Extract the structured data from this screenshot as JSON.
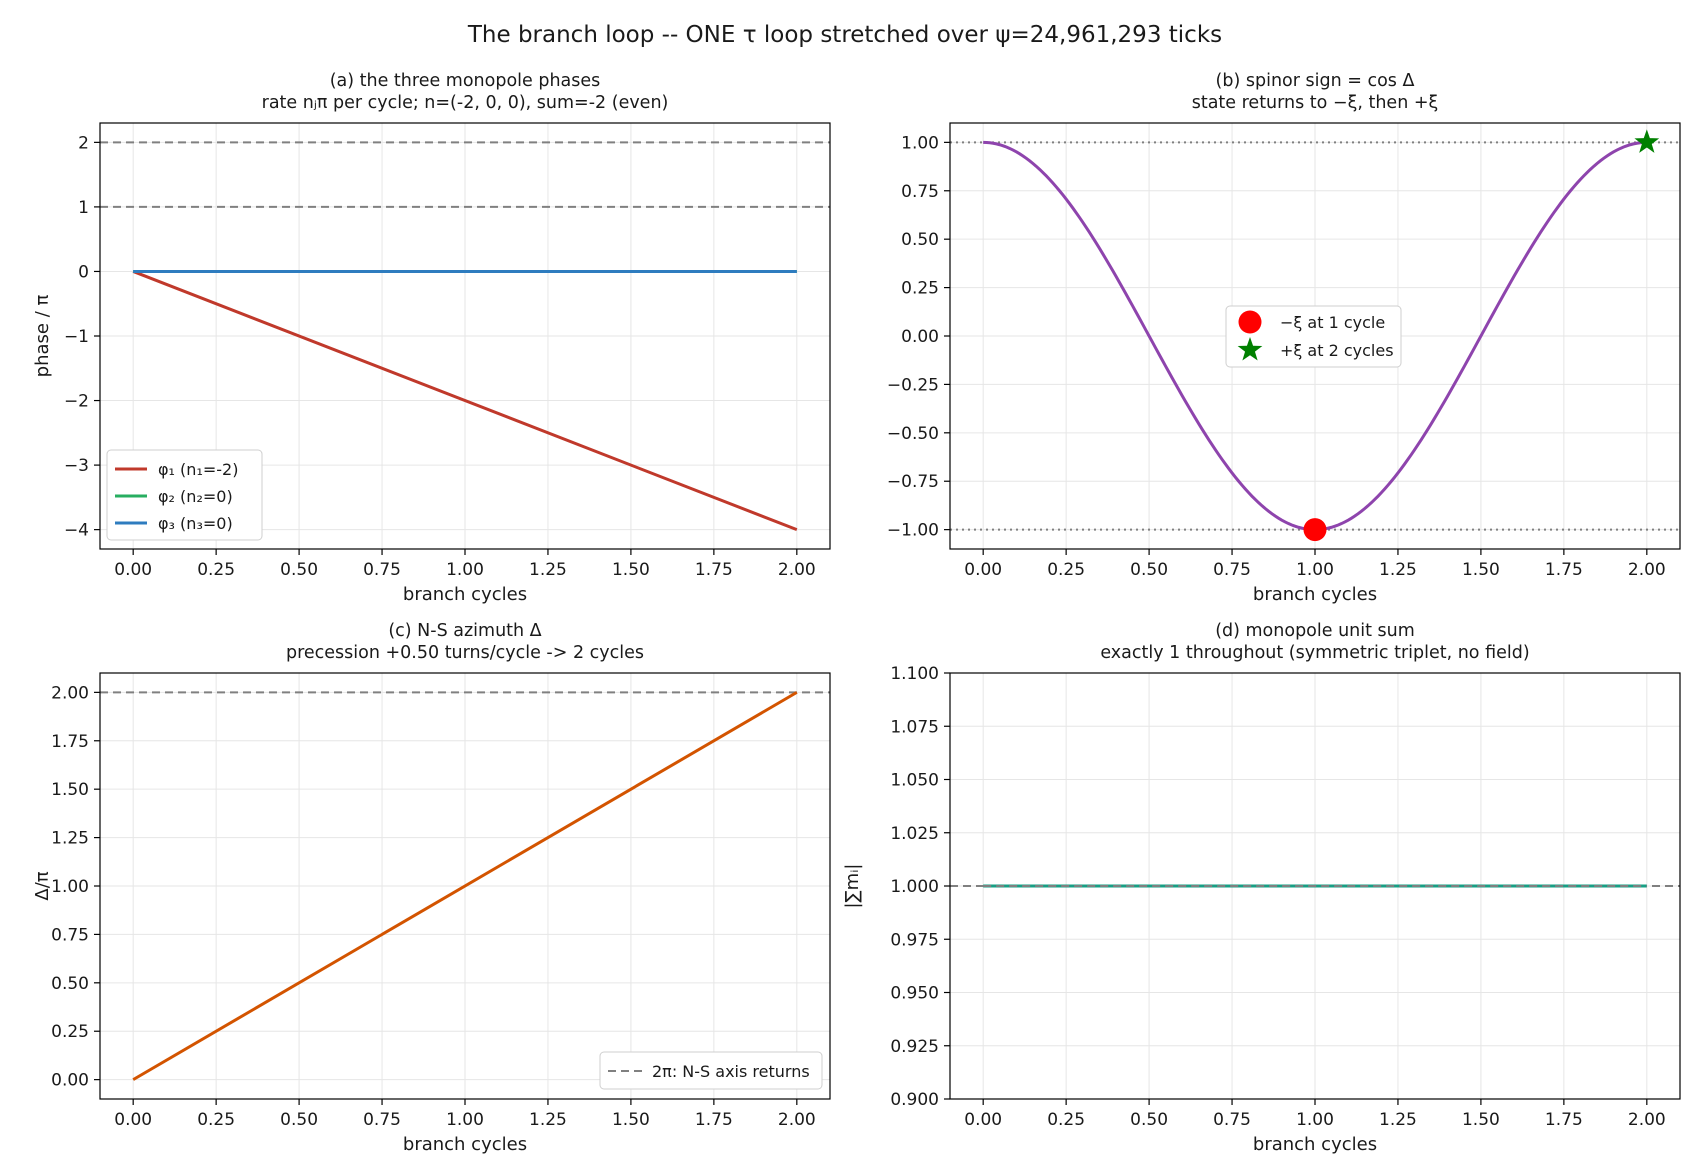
{
  "figure": {
    "title": "The branch loop -- ONE τ loop stretched over ψ=24,961,293 ticks"
  },
  "colors": {
    "phi1": "#c0392b",
    "phi2": "#27ae60",
    "phi3": "#2e7cbf",
    "spinor": "#8e44ad",
    "azimuth": "#d35400",
    "unitsum": "#16a085",
    "reference": "#808080",
    "marker_minus": "#ff0000",
    "marker_plus": "#008000"
  },
  "chart_data": [
    {
      "id": "a",
      "type": "line",
      "title_line1": "(a) the three monopole phases",
      "title_line2": "rate nⱼπ per cycle; n=(-2, 0, 0), sum=-2 (even)",
      "xlabel": "branch cycles",
      "ylabel": "phase / π",
      "xlim": [
        -0.1,
        2.1
      ],
      "ylim": [
        -4.3,
        2.3
      ],
      "xticks": [
        0,
        0.25,
        0.5,
        0.75,
        1.0,
        1.25,
        1.5,
        1.75,
        2.0
      ],
      "xtick_labels": [
        "0.00",
        "0.25",
        "0.50",
        "0.75",
        "1.00",
        "1.25",
        "1.50",
        "1.75",
        "2.00"
      ],
      "yticks": [
        -4,
        -3,
        -2,
        -1,
        0,
        1,
        2
      ],
      "ytick_labels": [
        "−4",
        "−3",
        "−2",
        "−1",
        "0",
        "1",
        "2"
      ],
      "grid": true,
      "hlines": [
        1,
        2
      ],
      "series": [
        {
          "name": "φ₁  (n₁=-2)",
          "color_key": "phi1",
          "x": [
            0,
            2
          ],
          "y": [
            0,
            -4
          ]
        },
        {
          "name": "φ₂  (n₂=0)",
          "color_key": "phi2",
          "x": [
            0,
            2
          ],
          "y": [
            0,
            0
          ]
        },
        {
          "name": "φ₃  (n₃=0)",
          "color_key": "phi3",
          "x": [
            0,
            2
          ],
          "y": [
            0,
            0
          ]
        }
      ],
      "legend_position": "lower-left"
    },
    {
      "id": "b",
      "type": "line",
      "title_line1": "(b) spinor sign  = cos Δ",
      "title_line2": "state returns to −ξ, then +ξ",
      "xlabel": "branch cycles",
      "ylabel": "",
      "xlim": [
        -0.1,
        2.1
      ],
      "ylim": [
        -1.1,
        1.1
      ],
      "xticks": [
        0,
        0.25,
        0.5,
        0.75,
        1.0,
        1.25,
        1.5,
        1.75,
        2.0
      ],
      "xtick_labels": [
        "0.00",
        "0.25",
        "0.50",
        "0.75",
        "1.00",
        "1.25",
        "1.50",
        "1.75",
        "2.00"
      ],
      "yticks": [
        -1.0,
        -0.75,
        -0.5,
        -0.25,
        0,
        0.25,
        0.5,
        0.75,
        1.0
      ],
      "ytick_labels": [
        "−1.00",
        "−0.75",
        "−0.50",
        "−0.25",
        "0.00",
        "0.25",
        "0.50",
        "0.75",
        "1.00"
      ],
      "grid": true,
      "hlines": [
        1,
        -1
      ],
      "curve": "cos(pi * x)",
      "markers": [
        {
          "name": "−ξ at 1 cycle",
          "x": 1,
          "y": -1,
          "shape": "circle",
          "color_key": "marker_minus"
        },
        {
          "name": "+ξ at 2 cycles",
          "x": 2,
          "y": 1,
          "shape": "star",
          "color_key": "marker_plus"
        }
      ],
      "legend_position": "center"
    },
    {
      "id": "c",
      "type": "line",
      "title_line1": "(c) N-S azimuth Δ",
      "title_line2": "precession +0.50 turns/cycle -> 2 cycles",
      "xlabel": "branch cycles",
      "ylabel": "Δ/π",
      "xlim": [
        -0.1,
        2.1
      ],
      "ylim": [
        -0.1,
        2.1
      ],
      "xticks": [
        0,
        0.25,
        0.5,
        0.75,
        1.0,
        1.25,
        1.5,
        1.75,
        2.0
      ],
      "xtick_labels": [
        "0.00",
        "0.25",
        "0.50",
        "0.75",
        "1.00",
        "1.25",
        "1.50",
        "1.75",
        "2.00"
      ],
      "yticks": [
        0,
        0.25,
        0.5,
        0.75,
        1.0,
        1.25,
        1.5,
        1.75,
        2.0
      ],
      "ytick_labels": [
        "0.00",
        "0.25",
        "0.50",
        "0.75",
        "1.00",
        "1.25",
        "1.50",
        "1.75",
        "2.00"
      ],
      "grid": true,
      "hlines": [
        2
      ],
      "series": [
        {
          "name": "",
          "color_key": "azimuth",
          "x": [
            0,
            2
          ],
          "y": [
            0,
            2
          ]
        }
      ],
      "legend_entries": [
        "2π: N-S axis returns"
      ],
      "legend_position": "lower-right"
    },
    {
      "id": "d",
      "type": "line",
      "title_line1": "(d) monopole unit sum",
      "title_line2": "exactly 1 throughout (symmetric triplet, no field)",
      "xlabel": "branch cycles",
      "ylabel": "|∑mᵢ|",
      "xlim": [
        -0.1,
        2.1
      ],
      "ylim": [
        0.9,
        1.1
      ],
      "xticks": [
        0,
        0.25,
        0.5,
        0.75,
        1.0,
        1.25,
        1.5,
        1.75,
        2.0
      ],
      "xtick_labels": [
        "0.00",
        "0.25",
        "0.50",
        "0.75",
        "1.00",
        "1.25",
        "1.50",
        "1.75",
        "2.00"
      ],
      "yticks": [
        0.9,
        0.925,
        0.95,
        0.975,
        1.0,
        1.025,
        1.05,
        1.075,
        1.1
      ],
      "ytick_labels": [
        "0.900",
        "0.925",
        "0.950",
        "0.975",
        "1.000",
        "1.025",
        "1.050",
        "1.075",
        "1.100"
      ],
      "grid": true,
      "hlines": [
        1.0
      ],
      "series": [
        {
          "name": "",
          "color_key": "unitsum",
          "x": [
            0,
            2
          ],
          "y": [
            1.0,
            1.0
          ]
        }
      ]
    }
  ]
}
